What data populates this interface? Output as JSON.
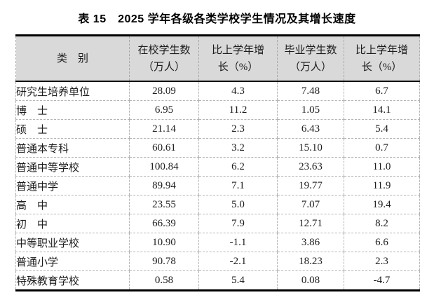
{
  "title": "表 15　2025 学年各级各类学校学生情况及其增长速度",
  "table": {
    "columns": [
      {
        "id": "category",
        "lines": [
          "类　别",
          ""
        ]
      },
      {
        "id": "enrolled",
        "lines": [
          "在校学生数",
          "（万人）"
        ]
      },
      {
        "id": "enrolled-growth",
        "lines": [
          "比上学年增",
          "长（%）"
        ]
      },
      {
        "id": "graduates",
        "lines": [
          "毕业学生数",
          "（万人）"
        ]
      },
      {
        "id": "graduates-growth",
        "lines": [
          "比上学年增",
          "长（%）"
        ]
      }
    ],
    "rows": [
      {
        "label": "研究生培养单位",
        "indent": 0,
        "values": [
          "28.09",
          "4.3",
          "7.48",
          "6.7"
        ]
      },
      {
        "label": "博　士",
        "indent": 1,
        "values": [
          "6.95",
          "11.2",
          "1.05",
          "14.1"
        ]
      },
      {
        "label": "硕　士",
        "indent": 1,
        "values": [
          "21.14",
          "2.3",
          "6.43",
          "5.4"
        ]
      },
      {
        "label": "普通本专科",
        "indent": 0,
        "values": [
          "60.61",
          "3.2",
          "15.10",
          "0.7"
        ]
      },
      {
        "label": "普通中等学校",
        "indent": 0,
        "values": [
          "100.84",
          "6.2",
          "23.63",
          "11.0"
        ]
      },
      {
        "label": "普通中学",
        "indent": 1,
        "values": [
          "89.94",
          "7.1",
          "19.77",
          "11.9"
        ]
      },
      {
        "label": "高　中",
        "indent": 2,
        "values": [
          "23.55",
          "5.0",
          "7.07",
          "19.4"
        ]
      },
      {
        "label": "初　中",
        "indent": 2,
        "values": [
          "66.39",
          "7.9",
          "12.71",
          "8.2"
        ]
      },
      {
        "label": "中等职业学校",
        "indent": 1,
        "values": [
          "10.90",
          "-1.1",
          "3.86",
          "6.6"
        ]
      },
      {
        "label": "普通小学",
        "indent": 0,
        "values": [
          "90.78",
          "-2.1",
          "18.23",
          "2.3"
        ]
      },
      {
        "label": "特殊教育学校",
        "indent": 0,
        "values": [
          "0.58",
          "5.4",
          "0.08",
          "-4.7"
        ]
      }
    ]
  },
  "colors": {
    "header_background": "#d9d9d9",
    "heavy_border": "#000000",
    "grid_line": "#b4b4b4"
  }
}
